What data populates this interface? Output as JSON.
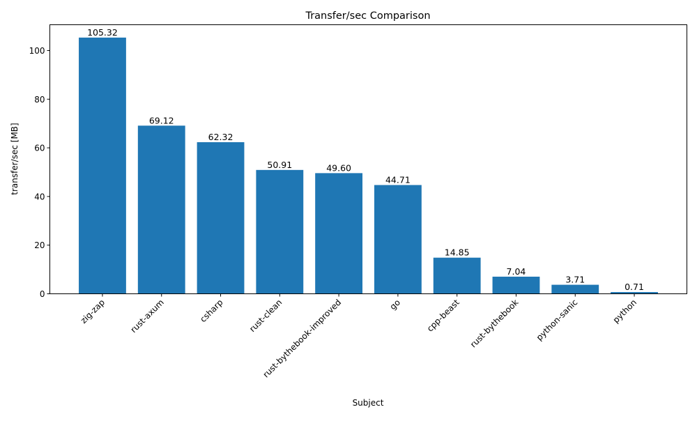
{
  "chart_data": {
    "type": "bar",
    "title": "Transfer/sec Comparison",
    "xlabel": "Subject",
    "ylabel": "transfer/sec [MB]",
    "categories": [
      "zig-zap",
      "rust-axum",
      "csharp",
      "rust-clean",
      "rust-bythebook-improved",
      "go",
      "cpp-beast",
      "rust-bythebook",
      "python-sanic",
      "python"
    ],
    "values": [
      105.32,
      69.12,
      62.32,
      50.91,
      49.6,
      44.71,
      14.85,
      7.04,
      3.71,
      0.71
    ],
    "data_labels": [
      "105.32",
      "69.12",
      "62.32",
      "50.91",
      "49.60",
      "44.71",
      "14.85",
      "7.04",
      "3.71",
      "0.71"
    ],
    "ylim": [
      0,
      110.6
    ],
    "yticks": [
      0,
      20,
      40,
      60,
      80,
      100
    ],
    "grid": false,
    "bar_color": "#1f77b4"
  }
}
